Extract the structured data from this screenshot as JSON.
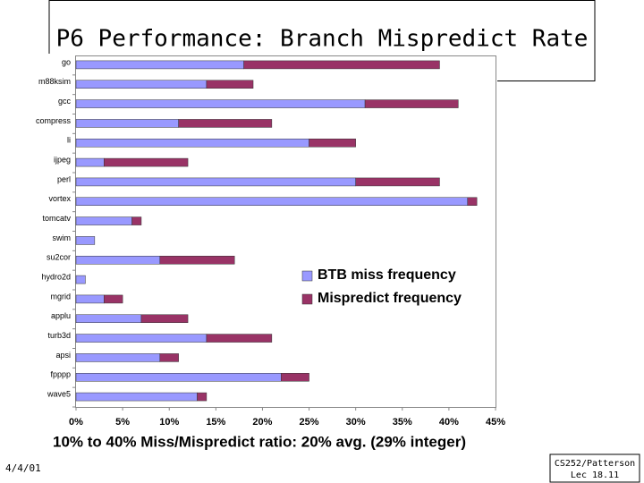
{
  "chart_data": {
    "type": "bar",
    "orientation": "horizontal",
    "stacked": true,
    "title": "P6 Performance: Branch Mispredict Rate",
    "subtitle": "10% to 40% Miss/Mispredict ratio: 20% avg. (29% integer)",
    "categories": [
      "go",
      "m88ksim",
      "gcc",
      "compress",
      "li",
      "ijpeg",
      "perl",
      "vortex",
      "tomcatv",
      "swim",
      "su2cor",
      "hydro2d",
      "mgrid",
      "applu",
      "turb3d",
      "apsi",
      "fpppp",
      "wave5"
    ],
    "series": [
      {
        "name": "BTB miss frequency",
        "color": "#9999ff",
        "values": [
          18,
          14,
          31,
          11,
          25,
          3,
          30,
          42,
          6,
          2,
          9,
          1,
          3,
          7,
          14,
          9,
          22,
          13
        ]
      },
      {
        "name": "Mispredict frequency",
        "color": "#993366",
        "values": [
          21,
          5,
          10,
          10,
          5,
          9,
          9,
          1,
          1,
          0,
          8,
          0,
          2,
          5,
          7,
          2,
          3,
          1
        ]
      }
    ],
    "xlim": [
      0,
      45
    ],
    "xticks": [
      {
        "value": 0,
        "label": "0%"
      },
      {
        "value": 5,
        "label": "5%"
      },
      {
        "value": 10,
        "label": "10%"
      },
      {
        "value": 15,
        "label": "15%"
      },
      {
        "value": 20,
        "label": "20%"
      },
      {
        "value": 25,
        "label": "25%"
      },
      {
        "value": 30,
        "label": "30%"
      },
      {
        "value": 35,
        "label": "35%"
      },
      {
        "value": 40,
        "label": "40%"
      },
      {
        "value": 45,
        "label": "45%"
      }
    ],
    "legend": "right"
  },
  "footer": {
    "date": "4/4/01",
    "course": "CS252/Patterson",
    "lecture": "Lec 18.11"
  }
}
